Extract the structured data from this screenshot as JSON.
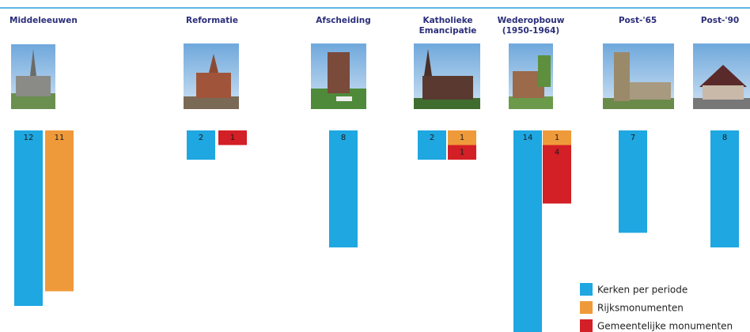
{
  "chart_data": {
    "type": "bar",
    "categories": [
      "Middeleeuwen",
      "Reformatie",
      "Afscheiding",
      "Katholieke Emancipatie",
      "Wederopbouw (1950-1964)",
      "Post-'65",
      "Post-'90"
    ],
    "series": [
      {
        "name": "Kerken per periode",
        "color": "#1ea7e1",
        "values": [
          12,
          2,
          8,
          2,
          14,
          7,
          8
        ]
      },
      {
        "name": "Rijksmonumenten",
        "color": "#ef9a3a",
        "values": [
          11,
          null,
          null,
          1,
          1,
          null,
          null
        ]
      },
      {
        "name": "Gemeentelijke monumenten",
        "color": "#d31f26",
        "values": [
          null,
          1,
          null,
          1,
          4,
          null,
          null
        ]
      }
    ],
    "legend": "lower right"
  }
}
